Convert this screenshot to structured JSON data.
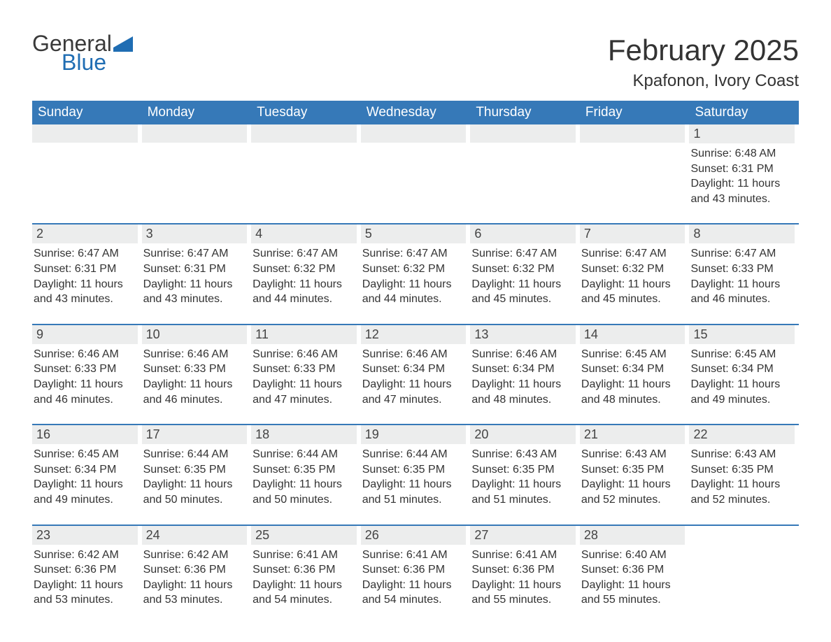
{
  "brand": {
    "word1": "General",
    "word2": "Blue",
    "word1_color": "#3a3a3a",
    "word2_color": "#1f6db3",
    "mark_color": "#1f6db3"
  },
  "title": {
    "month_year": "February 2025",
    "location": "Kpafonon, Ivory Coast"
  },
  "styling": {
    "header_bg": "#3679b8",
    "header_text_color": "#ffffff",
    "daynum_bg": "#eceded",
    "week_border_color": "#3679b8",
    "body_text_color": "#333333",
    "font_family": "Arial",
    "month_title_fontsize": 42,
    "location_fontsize": 24,
    "dow_fontsize": 19,
    "daynum_fontsize": 18,
    "body_fontsize": 16
  },
  "days_of_week": [
    "Sunday",
    "Monday",
    "Tuesday",
    "Wednesday",
    "Thursday",
    "Friday",
    "Saturday"
  ],
  "weeks": [
    [
      {
        "num": "",
        "sunrise": "",
        "sunset": "",
        "daylight": ""
      },
      {
        "num": "",
        "sunrise": "",
        "sunset": "",
        "daylight": ""
      },
      {
        "num": "",
        "sunrise": "",
        "sunset": "",
        "daylight": ""
      },
      {
        "num": "",
        "sunrise": "",
        "sunset": "",
        "daylight": ""
      },
      {
        "num": "",
        "sunrise": "",
        "sunset": "",
        "daylight": ""
      },
      {
        "num": "",
        "sunrise": "",
        "sunset": "",
        "daylight": ""
      },
      {
        "num": "1",
        "sunrise": "Sunrise: 6:48 AM",
        "sunset": "Sunset: 6:31 PM",
        "daylight": "Daylight: 11 hours and 43 minutes."
      }
    ],
    [
      {
        "num": "2",
        "sunrise": "Sunrise: 6:47 AM",
        "sunset": "Sunset: 6:31 PM",
        "daylight": "Daylight: 11 hours and 43 minutes."
      },
      {
        "num": "3",
        "sunrise": "Sunrise: 6:47 AM",
        "sunset": "Sunset: 6:31 PM",
        "daylight": "Daylight: 11 hours and 43 minutes."
      },
      {
        "num": "4",
        "sunrise": "Sunrise: 6:47 AM",
        "sunset": "Sunset: 6:32 PM",
        "daylight": "Daylight: 11 hours and 44 minutes."
      },
      {
        "num": "5",
        "sunrise": "Sunrise: 6:47 AM",
        "sunset": "Sunset: 6:32 PM",
        "daylight": "Daylight: 11 hours and 44 minutes."
      },
      {
        "num": "6",
        "sunrise": "Sunrise: 6:47 AM",
        "sunset": "Sunset: 6:32 PM",
        "daylight": "Daylight: 11 hours and 45 minutes."
      },
      {
        "num": "7",
        "sunrise": "Sunrise: 6:47 AM",
        "sunset": "Sunset: 6:32 PM",
        "daylight": "Daylight: 11 hours and 45 minutes."
      },
      {
        "num": "8",
        "sunrise": "Sunrise: 6:47 AM",
        "sunset": "Sunset: 6:33 PM",
        "daylight": "Daylight: 11 hours and 46 minutes."
      }
    ],
    [
      {
        "num": "9",
        "sunrise": "Sunrise: 6:46 AM",
        "sunset": "Sunset: 6:33 PM",
        "daylight": "Daylight: 11 hours and 46 minutes."
      },
      {
        "num": "10",
        "sunrise": "Sunrise: 6:46 AM",
        "sunset": "Sunset: 6:33 PM",
        "daylight": "Daylight: 11 hours and 46 minutes."
      },
      {
        "num": "11",
        "sunrise": "Sunrise: 6:46 AM",
        "sunset": "Sunset: 6:33 PM",
        "daylight": "Daylight: 11 hours and 47 minutes."
      },
      {
        "num": "12",
        "sunrise": "Sunrise: 6:46 AM",
        "sunset": "Sunset: 6:34 PM",
        "daylight": "Daylight: 11 hours and 47 minutes."
      },
      {
        "num": "13",
        "sunrise": "Sunrise: 6:46 AM",
        "sunset": "Sunset: 6:34 PM",
        "daylight": "Daylight: 11 hours and 48 minutes."
      },
      {
        "num": "14",
        "sunrise": "Sunrise: 6:45 AM",
        "sunset": "Sunset: 6:34 PM",
        "daylight": "Daylight: 11 hours and 48 minutes."
      },
      {
        "num": "15",
        "sunrise": "Sunrise: 6:45 AM",
        "sunset": "Sunset: 6:34 PM",
        "daylight": "Daylight: 11 hours and 49 minutes."
      }
    ],
    [
      {
        "num": "16",
        "sunrise": "Sunrise: 6:45 AM",
        "sunset": "Sunset: 6:34 PM",
        "daylight": "Daylight: 11 hours and 49 minutes."
      },
      {
        "num": "17",
        "sunrise": "Sunrise: 6:44 AM",
        "sunset": "Sunset: 6:35 PM",
        "daylight": "Daylight: 11 hours and 50 minutes."
      },
      {
        "num": "18",
        "sunrise": "Sunrise: 6:44 AM",
        "sunset": "Sunset: 6:35 PM",
        "daylight": "Daylight: 11 hours and 50 minutes."
      },
      {
        "num": "19",
        "sunrise": "Sunrise: 6:44 AM",
        "sunset": "Sunset: 6:35 PM",
        "daylight": "Daylight: 11 hours and 51 minutes."
      },
      {
        "num": "20",
        "sunrise": "Sunrise: 6:43 AM",
        "sunset": "Sunset: 6:35 PM",
        "daylight": "Daylight: 11 hours and 51 minutes."
      },
      {
        "num": "21",
        "sunrise": "Sunrise: 6:43 AM",
        "sunset": "Sunset: 6:35 PM",
        "daylight": "Daylight: 11 hours and 52 minutes."
      },
      {
        "num": "22",
        "sunrise": "Sunrise: 6:43 AM",
        "sunset": "Sunset: 6:35 PM",
        "daylight": "Daylight: 11 hours and 52 minutes."
      }
    ],
    [
      {
        "num": "23",
        "sunrise": "Sunrise: 6:42 AM",
        "sunset": "Sunset: 6:36 PM",
        "daylight": "Daylight: 11 hours and 53 minutes."
      },
      {
        "num": "24",
        "sunrise": "Sunrise: 6:42 AM",
        "sunset": "Sunset: 6:36 PM",
        "daylight": "Daylight: 11 hours and 53 minutes."
      },
      {
        "num": "25",
        "sunrise": "Sunrise: 6:41 AM",
        "sunset": "Sunset: 6:36 PM",
        "daylight": "Daylight: 11 hours and 54 minutes."
      },
      {
        "num": "26",
        "sunrise": "Sunrise: 6:41 AM",
        "sunset": "Sunset: 6:36 PM",
        "daylight": "Daylight: 11 hours and 54 minutes."
      },
      {
        "num": "27",
        "sunrise": "Sunrise: 6:41 AM",
        "sunset": "Sunset: 6:36 PM",
        "daylight": "Daylight: 11 hours and 55 minutes."
      },
      {
        "num": "28",
        "sunrise": "Sunrise: 6:40 AM",
        "sunset": "Sunset: 6:36 PM",
        "daylight": "Daylight: 11 hours and 55 minutes."
      },
      {
        "num": "",
        "sunrise": "",
        "sunset": "",
        "daylight": ""
      }
    ]
  ]
}
